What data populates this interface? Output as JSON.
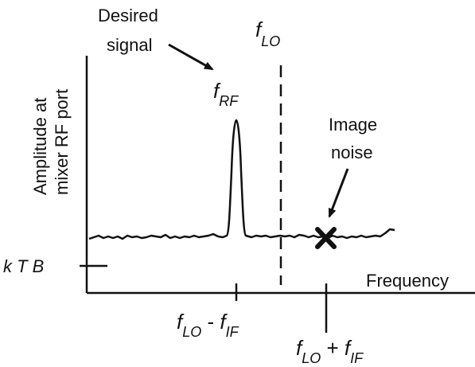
{
  "y_axis_label": {
    "line1": "Amplitude at",
    "line2": "mixer RF port"
  },
  "x_axis_label": "Frequency",
  "ktb_label": "k T B",
  "annotations": {
    "desired_signal": {
      "line1": "Desired",
      "line2": "signal"
    },
    "image_noise": {
      "line1": "Image",
      "line2": "noise"
    }
  },
  "markers": {
    "f_lo": {
      "main": "f",
      "sub": "LO"
    },
    "f_rf": {
      "main": "f",
      "sub": "RF"
    }
  },
  "tick_labels": {
    "lo_minus_if": {
      "f1": "f",
      "s1": "LO",
      "op": " - ",
      "f2": "f",
      "s2": "IF"
    },
    "lo_plus_if": {
      "f1": "f",
      "s1": "LO",
      "op": " + ",
      "f2": "f",
      "s2": "IF"
    }
  },
  "colors": {
    "ink": "#111111",
    "background": "#ffffff"
  }
}
